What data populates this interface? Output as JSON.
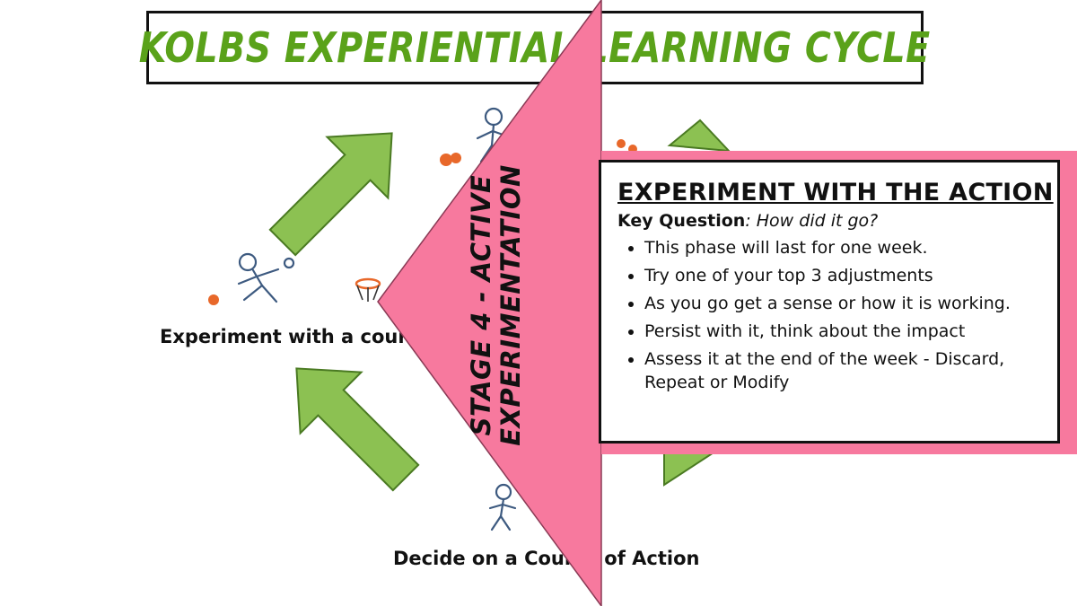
{
  "title": "Kolbs Experiential Learning Cycle",
  "cycle_labels": {
    "left": "Experiment with a course of action",
    "bottom": "Decide on a Course of Action"
  },
  "stage_label": "Stage 4 - Active Experimentation",
  "card": {
    "heading": "EXPERIMENT WITH THE ACTION",
    "key_question_label": "Key Question",
    "key_question_text": ": How did it go?",
    "bullets": [
      "This phase will last for one week.",
      "Try one of your top 3 adjustments",
      "As you go get a sense or how it is working.",
      "Persist with it, think about the impact",
      "Assess it at the end of the week - Discard, Repeat or Modify"
    ]
  },
  "colors": {
    "title_green": "#5aa21a",
    "arrow_green": "#8cc152",
    "pink": "#f7799e",
    "ball_orange": "#e8682a"
  },
  "icons": [
    "stick-figure-icon",
    "ball-icon",
    "basket-icon",
    "cycle-arrow-icon"
  ]
}
